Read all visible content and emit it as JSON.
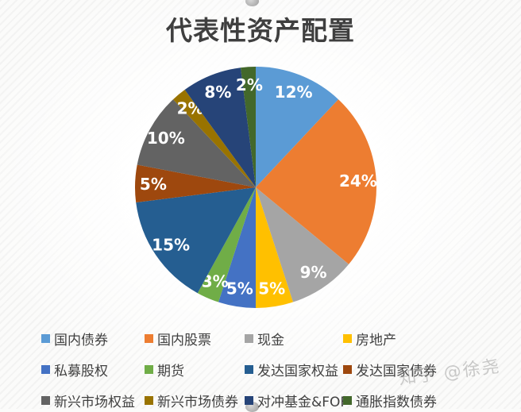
{
  "page": {
    "watermark": "知乎 @徐尧"
  },
  "chart_data": {
    "type": "pie",
    "title": "代表性资产配置",
    "categories": [
      "国内债券",
      "国内股票",
      "现金",
      "房地产",
      "私募股权",
      "期货",
      "发达国家权益",
      "发达国家债券",
      "新兴市场权益",
      "新兴市场债券",
      "对冲基金&FOF",
      "通胀指数债券"
    ],
    "values": [
      12,
      24,
      9,
      5,
      5,
      3,
      15,
      5,
      10,
      2,
      8,
      2
    ],
    "labels": [
      "12%",
      "24%",
      "9%",
      "5%",
      "5%",
      "3%",
      "15%",
      "5%",
      "10%",
      "2%",
      "8%",
      "2%"
    ],
    "unit": "%",
    "colors": [
      "#5B9BD5",
      "#ED7D31",
      "#A5A5A5",
      "#FFC000",
      "#4472C4",
      "#70AD47",
      "#255E91",
      "#9E480E",
      "#636363",
      "#997300",
      "#264478",
      "#43682B"
    ],
    "start_angle_deg": 0,
    "direction": "clockwise",
    "data_label_color": "#FFFFFF",
    "legend_position": "bottom",
    "legend_columns": 4,
    "title_color": "#3f3f3f",
    "legend_text_color": "#404040"
  }
}
